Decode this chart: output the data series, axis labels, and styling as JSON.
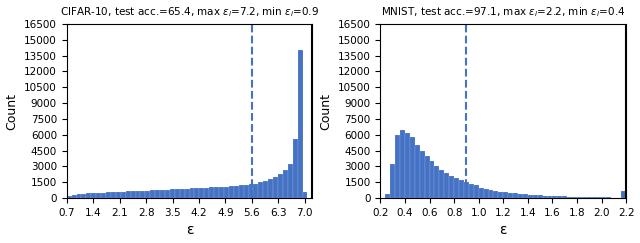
{
  "cifar": {
    "title": "CIFAR-10, test acc.=65.4, max $\\varepsilon_i$=7.2, min $\\varepsilon_i$=0.9",
    "xmin": 0.7,
    "xmax": 7.2,
    "ymax": 16500,
    "dashed_x": 5.6,
    "solid_x": 7.2,
    "xlabel": "ε",
    "ylabel": "Count",
    "xticks": [
      0.7,
      1.4,
      2.1,
      2.8,
      3.5,
      4.2,
      4.9,
      5.6,
      6.3,
      7.0
    ]
  },
  "mnist": {
    "title": "MNIST, test acc.=97.1, max $\\varepsilon_i$=2.2, min $\\varepsilon_i$=0.4",
    "xmin": 0.2,
    "xmax": 2.2,
    "ymax": 16500,
    "dashed_x": 0.9,
    "solid_x": 2.2,
    "xlabel": "ε",
    "ylabel": "Count",
    "xticks": [
      0.2,
      0.4,
      0.6,
      0.8,
      1.0,
      1.2,
      1.4,
      1.6,
      1.8,
      2.0,
      2.2
    ]
  },
  "bar_color": "#4472c4",
  "dashed_color": "#4472c4",
  "solid_color": "black",
  "yticks": [
    0,
    1500,
    3000,
    4500,
    6000,
    7500,
    9000,
    10500,
    12000,
    13500,
    15000,
    16500
  ],
  "cifar_bin_heights": [
    200,
    300,
    350,
    400,
    450,
    480,
    500,
    520,
    550,
    580,
    600,
    620,
    640,
    660,
    680,
    700,
    720,
    750,
    780,
    800,
    820,
    840,
    860,
    880,
    900,
    920,
    950,
    980,
    1000,
    1020,
    1050,
    1080,
    1100,
    1130,
    1160,
    1200,
    1250,
    1300,
    1370,
    1500,
    1650,
    1800,
    2000,
    2300,
    2700,
    3200,
    5600,
    14000,
    600,
    0
  ],
  "mnist_bin_heights": [
    0,
    400,
    3200,
    6000,
    6500,
    6200,
    5800,
    5000,
    4500,
    4000,
    3500,
    3000,
    2700,
    2400,
    2100,
    1900,
    1700,
    1500,
    1300,
    1200,
    1000,
    900,
    800,
    700,
    600,
    550,
    500,
    450,
    400,
    350,
    300,
    280,
    260,
    240,
    220,
    200,
    180,
    160,
    150,
    140,
    130,
    120,
    110,
    100,
    90,
    80,
    70,
    60,
    50,
    700
  ]
}
